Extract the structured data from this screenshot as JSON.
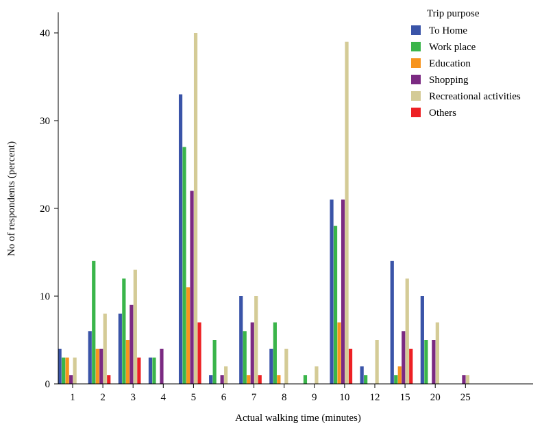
{
  "chart_data": {
    "type": "bar",
    "title": "",
    "xlabel": "Actual walking time (minutes)",
    "ylabel": "No of respondents (percent)",
    "ylim": [
      0,
      42
    ],
    "yticks": [
      0,
      10,
      20,
      30,
      40
    ],
    "grid": false,
    "legend": {
      "title": "Trip purpose",
      "placement": "top-right"
    },
    "categories": [
      "1",
      "2",
      "3",
      "4",
      "5",
      "6",
      "7",
      "8",
      "9",
      "10",
      "12",
      "15",
      "20",
      "25"
    ],
    "series": [
      {
        "name": "To Home",
        "color": "#3a54a8",
        "values": [
          4,
          6,
          8,
          3,
          33,
          1,
          10,
          4,
          0,
          21,
          2,
          14,
          10,
          0
        ]
      },
      {
        "name": "Work place",
        "color": "#3ab54a",
        "values": [
          3,
          14,
          12,
          3,
          27,
          5,
          6,
          7,
          1,
          18,
          1,
          1,
          5,
          0
        ]
      },
      {
        "name": "Education",
        "color": "#f7941d",
        "values": [
          3,
          4,
          5,
          0,
          11,
          0,
          1,
          1,
          0,
          7,
          0,
          2,
          0,
          0
        ]
      },
      {
        "name": "Shopping",
        "color": "#7b2a82",
        "values": [
          1,
          4,
          9,
          4,
          22,
          1,
          7,
          0,
          0,
          21,
          0,
          6,
          5,
          1
        ]
      },
      {
        "name": "Recreational activities",
        "color": "#d4cb96",
        "values": [
          3,
          8,
          13,
          0,
          40,
          2,
          10,
          4,
          2,
          39,
          5,
          12,
          7,
          1
        ]
      },
      {
        "name": "Others",
        "color": "#ed2024",
        "values": [
          0,
          1,
          3,
          0,
          7,
          0,
          1,
          0,
          0,
          4,
          0,
          4,
          0,
          0
        ]
      }
    ]
  }
}
